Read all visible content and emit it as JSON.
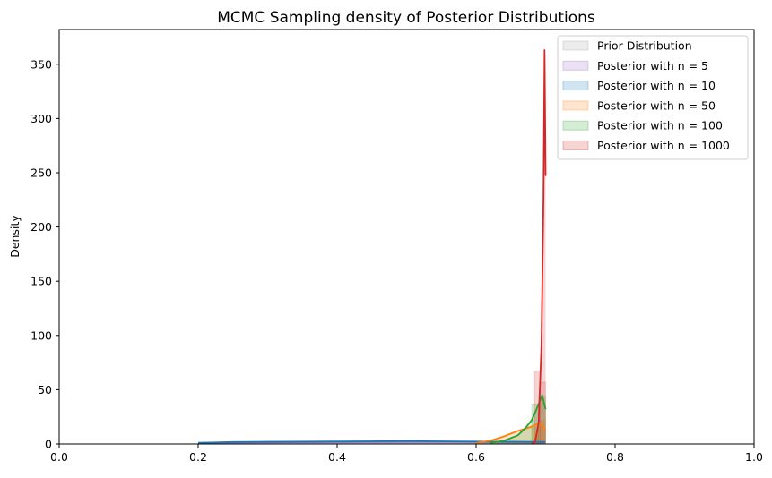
{
  "chart_data": {
    "type": "area",
    "title": "MCMC Sampling density of Posterior Distributions",
    "xlabel": "",
    "ylabel": "Density",
    "xlim": [
      0.0,
      1.0
    ],
    "ylim": [
      0,
      382
    ],
    "xticks": [
      "0.0",
      "0.2",
      "0.4",
      "0.6",
      "0.8",
      "1.0"
    ],
    "yticks": [
      "0",
      "50",
      "100",
      "150",
      "200",
      "250",
      "300",
      "350"
    ],
    "legend_position": "top-right",
    "series": [
      {
        "name": "Prior Distribution",
        "color": "#9e9e9e",
        "x": [
          0.2,
          0.3,
          0.4,
          0.5,
          0.6,
          0.7
        ],
        "y": [
          1.0,
          1.8,
          2.0,
          2.0,
          1.8,
          1.5
        ]
      },
      {
        "name": "Posterior with n = 5",
        "color": "#9467bd",
        "x": [
          0.2,
          0.3,
          0.4,
          0.5,
          0.6,
          0.7
        ],
        "y": [
          1.0,
          1.5,
          1.8,
          2.0,
          2.0,
          1.8
        ]
      },
      {
        "name": "Posterior with n = 10",
        "color": "#1f77b4",
        "x": [
          0.2,
          0.25,
          0.3,
          0.4,
          0.5,
          0.55,
          0.6,
          0.65,
          0.7
        ],
        "y": [
          1.0,
          1.8,
          2.0,
          2.3,
          2.7,
          2.5,
          2.2,
          2.0,
          1.8
        ]
      },
      {
        "name": "Posterior with n = 50",
        "color": "#ff7f0e",
        "x": [
          0.6,
          0.62,
          0.64,
          0.66,
          0.68,
          0.69,
          0.695,
          0.7
        ],
        "y": [
          1.0,
          3.0,
          7.0,
          12.0,
          16.0,
          19.0,
          18.0,
          12.0
        ]
      },
      {
        "name": "Posterior with n = 100",
        "color": "#2ca02c",
        "x": [
          0.62,
          0.64,
          0.66,
          0.67,
          0.68,
          0.685,
          0.69,
          0.695,
          0.7
        ],
        "y": [
          1.0,
          3.0,
          8.0,
          14.0,
          22.0,
          29.0,
          37.0,
          45.0,
          32.0
        ]
      },
      {
        "name": "Posterior with n = 1000",
        "color": "#d62728",
        "x": [
          0.68,
          0.685,
          0.69,
          0.694,
          0.697,
          0.6985,
          0.7
        ],
        "y": [
          0.0,
          2.0,
          20.0,
          90.0,
          230.0,
          363.0,
          247.0
        ]
      }
    ],
    "histograms": [
      {
        "series": 3,
        "x0": 0.68,
        "x1": 0.69,
        "height": 15
      },
      {
        "series": 3,
        "x0": 0.69,
        "x1": 0.7,
        "height": 22
      },
      {
        "series": 4,
        "x0": 0.68,
        "x1": 0.69,
        "height": 37
      },
      {
        "series": 4,
        "x0": 0.69,
        "x1": 0.7,
        "height": 44
      },
      {
        "series": 5,
        "x0": 0.684,
        "x1": 0.692,
        "height": 67
      },
      {
        "series": 5,
        "x0": 0.692,
        "x1": 0.7,
        "height": 57
      }
    ]
  }
}
